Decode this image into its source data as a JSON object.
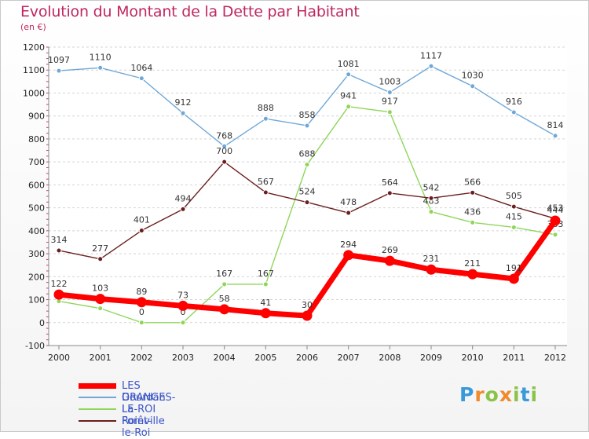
{
  "chart_data": {
    "type": "line",
    "title": "Evolution du Montant de la Dette par Habitant",
    "subtitle": "(en €)",
    "x": [
      "2000",
      "2001",
      "2002",
      "2003",
      "2004",
      "2005",
      "2006",
      "2007",
      "2008",
      "2009",
      "2010",
      "2011",
      "2012"
    ],
    "ylim": [
      -100,
      1200
    ],
    "yticks": [
      -100,
      0,
      100,
      200,
      300,
      400,
      500,
      600,
      700,
      800,
      900,
      1000,
      1100,
      1200
    ],
    "grid": "horizontal dashed",
    "legend_placement": "bottom-left",
    "series": [
      {
        "name": "Dourdan",
        "color": "#6fa8d8",
        "values": [
          1097,
          1110,
          1064,
          912,
          768,
          888,
          858,
          1081,
          1003,
          1117,
          1030,
          916,
          814
        ],
        "labels": [
          "1097",
          "1110",
          "1064",
          "912",
          "768",
          "888",
          "858",
          "1081",
          "1003",
          "1117",
          "1030",
          "916",
          "814"
        ]
      },
      {
        "name": "La Forêt-le-Roi",
        "color": "#8ed65a",
        "values": [
          93,
          62,
          0,
          0,
          167,
          167,
          688,
          941,
          917,
          483,
          436,
          415,
          383
        ],
        "labels": [
          "",
          "",
          "0",
          "0",
          "167",
          "167",
          "688",
          "941",
          "917",
          "483",
          "436",
          "415",
          "383"
        ]
      },
      {
        "name": "Roinville",
        "color": "#6b1e1e",
        "values": [
          314,
          277,
          401,
          494,
          700,
          567,
          524,
          478,
          564,
          542,
          566,
          505,
          453
        ],
        "labels": [
          "314",
          "277",
          "401",
          "494",
          "700",
          "567",
          "524",
          "478",
          "564",
          "542",
          "566",
          "505",
          "453"
        ]
      },
      {
        "name": "LES GRANGES-LE-ROI",
        "color": "#ff0000",
        "values": [
          122,
          103,
          89,
          73,
          58,
          41,
          30,
          294,
          269,
          231,
          211,
          191,
          444
        ],
        "labels": [
          "122",
          "103",
          "89",
          "73",
          "58",
          "41",
          "30",
          "294",
          "269",
          "231",
          "211",
          "191",
          "444"
        ]
      }
    ],
    "legend_order": [
      "LES GRANGES-LE-ROI",
      "Dourdan",
      "La Forêt-le-Roi",
      "Roinville"
    ]
  },
  "branding": {
    "letters": [
      "P",
      "r",
      "o",
      "x",
      "i",
      "t",
      "i"
    ],
    "colors": [
      "#3a9ad9",
      "#f08a2c",
      "#8bc34a"
    ]
  }
}
